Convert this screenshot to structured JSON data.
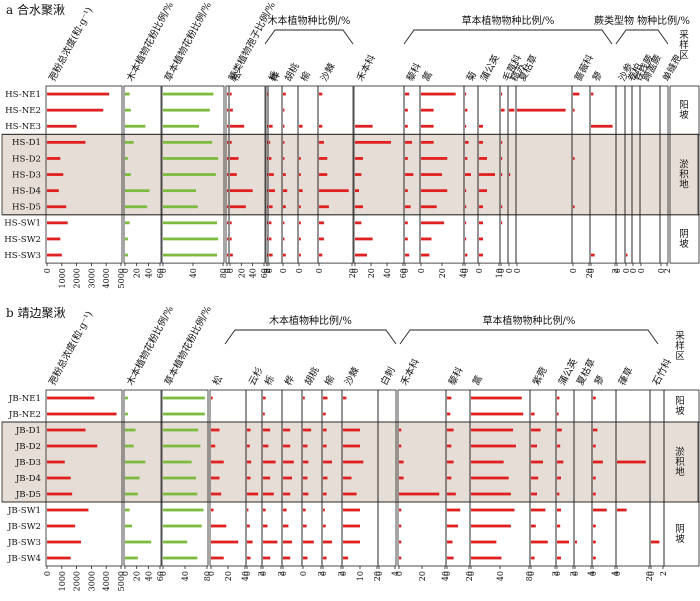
{
  "figure": {
    "colors": {
      "total": "#e02020",
      "tree_herb": "#7dbb3f",
      "species": "#e02020",
      "shade": "#e6ddd6",
      "frame": "#222222"
    }
  },
  "chart_data": [
    {
      "type": "bar",
      "panel_title": "a 合水聚湫",
      "samples": [
        "HS-NE1",
        "HS-NE2",
        "HS-NE3",
        "HS-D1",
        "HS-D2",
        "HS-D3",
        "HS-D4",
        "HS-D5",
        "HS-SW1",
        "HS-SW2",
        "HS-SW3"
      ],
      "group_labels": [
        {
          "label": "木本植物种比例/%"
        },
        {
          "label": "草本植物物种比例/%"
        },
        {
          "label": "蕨类型物 物种比例/%"
        }
      ],
      "zones": [
        {
          "label": "阳坡",
          "from": 0,
          "to": 2
        },
        {
          "label": "淤积地",
          "from": 3,
          "to": 7
        },
        {
          "label": "阴坡",
          "from": 8,
          "to": 10
        }
      ],
      "sample_area_label": "采样区",
      "columns": [
        {
          "label": "孢粉总浓度(粒·g⁻¹)",
          "kind": "total",
          "ticks": [
            "0",
            "1000",
            "2000",
            "3000",
            "4000",
            "5000"
          ],
          "max": 5000,
          "values": [
            4200,
            3800,
            2000,
            2600,
            900,
            1100,
            800,
            1300,
            1400,
            900,
            1000
          ]
        },
        {
          "label": "木本植物花粉比例/%",
          "kind": "woody",
          "ticks": [
            "0",
            "20",
            "40",
            "60"
          ],
          "max": 60,
          "values": [
            8,
            10,
            35,
            15,
            5,
            10,
            42,
            38,
            8,
            5,
            5
          ]
        },
        {
          "label": "草本植物花粉比例/%",
          "kind": "herb",
          "ticks": [
            "0",
            "40",
            "80"
          ],
          "max": 100,
          "values": [
            84,
            78,
            60,
            82,
            92,
            88,
            55,
            58,
            90,
            92,
            90
          ]
        },
        {
          "label": "蕨类植物孢子比例/%",
          "kind": "species",
          "ticks": [
            "0"
          ],
          "max": 10,
          "values": [
            2,
            0.5,
            1,
            4,
            1,
            5,
            1,
            1,
            2,
            1,
            1.5
          ]
        },
        {
          "label": "松",
          "kind": "species",
          "ticks": [
            "0",
            "20",
            "40",
            "60"
          ],
          "max": 60,
          "values": [
            3,
            5,
            25,
            3,
            15,
            12,
            40,
            28,
            3,
            3,
            5
          ]
        },
        {
          "label": "栎",
          "kind": "species",
          "ticks": [
            "0",
            "2"
          ],
          "max": 2,
          "values": [
            0.3,
            0,
            0.6,
            0.4,
            0.5,
            0.4,
            1.6,
            0.5,
            0.4,
            0.3,
            0.3
          ]
        },
        {
          "label": "桦",
          "kind": "species",
          "ticks": [
            "0"
          ],
          "max": 10,
          "values": [
            0,
            0,
            3,
            1,
            2,
            4,
            5,
            3,
            2,
            2,
            3
          ]
        },
        {
          "label": "胡桃",
          "kind": "species",
          "ticks": [
            "0"
          ],
          "max": 10,
          "values": [
            2,
            1,
            1,
            1,
            1,
            2,
            3,
            2,
            1,
            1,
            2
          ]
        },
        {
          "label": "榆",
          "kind": "species",
          "ticks": [
            "0"
          ],
          "max": 10,
          "values": [
            0,
            0,
            2,
            0,
            1,
            1,
            2,
            1,
            1,
            1,
            1
          ]
        },
        {
          "label": "沙棘",
          "kind": "species",
          "ticks": [
            "0",
            "20"
          ],
          "max": 20,
          "values": [
            2,
            0,
            2,
            3,
            5,
            5,
            18,
            6,
            3,
            3,
            2
          ]
        },
        {
          "label": "禾本科",
          "kind": "species",
          "ticks": [
            "0",
            "20",
            "40",
            "60"
          ],
          "max": 60,
          "values": [
            0,
            0,
            22,
            45,
            10,
            8,
            5,
            10,
            8,
            22,
            15
          ]
        },
        {
          "label": "藜科",
          "kind": "species",
          "ticks": [
            "0"
          ],
          "max": 10,
          "values": [
            3,
            2,
            2,
            5,
            2,
            6,
            2,
            4,
            2,
            2,
            3
          ]
        },
        {
          "label": "蒿",
          "kind": "species",
          "ticks": [
            "0",
            "20",
            "40"
          ],
          "max": 40,
          "values": [
            33,
            12,
            12,
            12,
            25,
            20,
            25,
            15,
            22,
            10,
            8
          ]
        },
        {
          "label": "菊",
          "kind": "species",
          "ticks": [
            "0"
          ],
          "max": 10,
          "values": [
            1,
            2,
            1,
            3,
            2,
            5,
            1,
            1,
            1,
            1,
            2
          ]
        },
        {
          "label": "蒲公英",
          "kind": "species",
          "ticks": [
            "0",
            "10"
          ],
          "max": 10,
          "values": [
            0,
            0,
            2,
            2,
            4,
            8,
            4,
            2,
            2,
            2,
            2
          ]
        },
        {
          "label": "毛茛科",
          "kind": "species",
          "ticks": [
            "0"
          ],
          "max": 10,
          "values": [
            1,
            6,
            0,
            1,
            1,
            1,
            0,
            1,
            1,
            0,
            0
          ]
        },
        {
          "label": "糙苏",
          "kind": "species",
          "ticks": [
            "0"
          ],
          "max": 10,
          "values": [
            0,
            9,
            0,
            0,
            0,
            1,
            0,
            0,
            0,
            0,
            0
          ]
        },
        {
          "label": "夏枯草",
          "kind": "species",
          "ticks": [
            "0"
          ],
          "max": 10,
          "values": [
            0,
            9,
            0,
            0,
            0,
            0,
            0,
            0,
            0,
            0,
            0
          ]
        },
        {
          "label": "蔷薇科",
          "kind": "species",
          "ticks": [
            "0",
            "20"
          ],
          "max": 20,
          "values": [
            8,
            2,
            0,
            0,
            2,
            0,
            0,
            2,
            0,
            0,
            0
          ]
        },
        {
          "label": "蓼",
          "kind": "species",
          "ticks": [
            "0",
            "2"
          ],
          "max": 2,
          "values": [
            0.2,
            0,
            1.8,
            0,
            0,
            0,
            0,
            0,
            0,
            0,
            0.3
          ]
        },
        {
          "label": "沙参",
          "kind": "species",
          "ticks": [
            "0"
          ],
          "max": 10,
          "values": [
            0,
            0,
            0,
            0,
            0,
            0,
            0,
            0,
            0,
            0,
            0
          ]
        },
        {
          "label": "卷柏",
          "kind": "species",
          "ticks": [
            "0"
          ],
          "max": 10,
          "values": [
            0,
            0,
            0,
            0,
            0,
            0,
            0,
            0,
            0,
            0,
            3
          ]
        },
        {
          "label": "铁线蕨",
          "kind": "species",
          "ticks": [
            "0"
          ],
          "max": 10,
          "values": [
            0,
            0,
            0,
            0,
            0,
            0,
            0,
            0,
            0,
            0,
            0
          ]
        },
        {
          "label": "蹄盖蕨",
          "kind": "species",
          "ticks": [
            "0"
          ],
          "max": 10,
          "values": [
            0,
            0,
            0,
            0,
            0,
            0,
            0,
            0,
            0,
            0,
            0
          ]
        },
        {
          "label": "单缝孢",
          "kind": "species",
          "ticks": [
            "0",
            "2"
          ],
          "max": 2,
          "values": [
            0,
            0,
            0,
            0,
            0,
            0,
            0,
            0,
            0,
            0,
            0
          ]
        }
      ]
    },
    {
      "type": "bar",
      "panel_title": "b 靖边聚湫",
      "samples": [
        "JB-NE1",
        "JB-NE2",
        "JB-D1",
        "JB-D2",
        "JB-D3",
        "JB-D4",
        "JB-D5",
        "JB-SW1",
        "JB-SW2",
        "JB-SW3",
        "JB-SW4"
      ],
      "group_labels": [
        {
          "label": "木本植物种比例/%"
        },
        {
          "label": "草本植物物种比例/%"
        }
      ],
      "zones": [
        {
          "label": "阳坡",
          "from": 0,
          "to": 1
        },
        {
          "label": "淤积地",
          "from": 2,
          "to": 6
        },
        {
          "label": "阴坡",
          "from": 7,
          "to": 10
        }
      ],
      "sample_area_label": "采样区",
      "columns": [
        {
          "label": "孢粉总浓度(粒·g⁻¹)",
          "kind": "total",
          "ticks": [
            "0",
            "1000",
            "2000",
            "3000",
            "4000",
            "5000"
          ],
          "max": 5000,
          "values": [
            3200,
            4700,
            2600,
            3400,
            1200,
            1600,
            1700,
            2800,
            1900,
            2300,
            1600
          ]
        },
        {
          "label": "木本植物花粉比例/%",
          "kind": "woody",
          "ticks": [
            "0",
            "20",
            "40",
            "60"
          ],
          "max": 60,
          "values": [
            5,
            5,
            18,
            15,
            35,
            25,
            22,
            8,
            12,
            45,
            22
          ]
        },
        {
          "label": "草本植物花粉比例/%",
          "kind": "herb",
          "ticks": [
            "0",
            "40",
            "80"
          ],
          "max": 100,
          "values": [
            95,
            95,
            80,
            85,
            65,
            75,
            78,
            92,
            88,
            55,
            78
          ]
        },
        {
          "label": "松",
          "kind": "species",
          "ticks": [
            "0",
            "20",
            "40"
          ],
          "max": 40,
          "values": [
            2,
            0,
            10,
            5,
            15,
            10,
            12,
            3,
            18,
            32,
            15
          ]
        },
        {
          "label": "云杉",
          "kind": "species",
          "ticks": [
            "0",
            "2"
          ],
          "max": 2,
          "values": [
            0,
            0,
            0.5,
            0.4,
            0.6,
            0.5,
            1.6,
            0.2,
            0.4,
            0.8,
            0.5
          ]
        },
        {
          "label": "栎",
          "kind": "species",
          "ticks": [
            "0",
            "2"
          ],
          "max": 2,
          "values": [
            0.3,
            0.2,
            0.8,
            0.6,
            1.4,
            0.8,
            1.2,
            0.3,
            0.5,
            1.6,
            0.8
          ]
        },
        {
          "label": "桦",
          "kind": "species",
          "ticks": [
            "0"
          ],
          "max": 10,
          "values": [
            0,
            0,
            4,
            4,
            6,
            5,
            4,
            2,
            3,
            5,
            4
          ]
        },
        {
          "label": "胡桃",
          "kind": "species",
          "ticks": [
            "0",
            "2"
          ],
          "max": 2,
          "values": [
            0.2,
            0,
            0.9,
            0.5,
            0.6,
            0.5,
            0.6,
            0.3,
            0.4,
            1.2,
            0.5
          ]
        },
        {
          "label": "榆",
          "kind": "species",
          "ticks": [
            "0",
            "2"
          ],
          "max": 2,
          "values": [
            0.5,
            0.3,
            0.4,
            0.4,
            1.0,
            0.5,
            0.4,
            0.2,
            0.3,
            1.0,
            0.4
          ]
        },
        {
          "label": "沙棘",
          "kind": "species",
          "ticks": [
            "0",
            "10",
            "20"
          ],
          "max": 20,
          "values": [
            2,
            0,
            10,
            10,
            12,
            5,
            8,
            10,
            10,
            10,
            3
          ]
        },
        {
          "label": "白刺",
          "kind": "species",
          "ticks": [
            "0",
            "4"
          ],
          "max": 4,
          "values": [
            0,
            0,
            0,
            0,
            0,
            0,
            0,
            0,
            0,
            0,
            0
          ]
        },
        {
          "label": "禾本科",
          "kind": "species",
          "ticks": [
            "0",
            "20",
            "40"
          ],
          "max": 40,
          "values": [
            0,
            0,
            2,
            2,
            4,
            4,
            35,
            2,
            2,
            2,
            2
          ]
        },
        {
          "label": "藜科",
          "kind": "species",
          "ticks": [
            "0",
            "20"
          ],
          "max": 20,
          "values": [
            4,
            3,
            6,
            4,
            6,
            4,
            8,
            12,
            10,
            5,
            6
          ]
        },
        {
          "label": "蒿",
          "kind": "species",
          "ticks": [
            "0",
            "40",
            "80"
          ],
          "max": 80,
          "values": [
            70,
            72,
            58,
            62,
            45,
            52,
            55,
            60,
            55,
            35,
            42
          ]
        },
        {
          "label": "紫菀",
          "kind": "species",
          "ticks": [
            "0",
            "2"
          ],
          "max": 2,
          "values": [
            0,
            0.3,
            0.8,
            0.5,
            1.0,
            0.6,
            0.5,
            1.2,
            0.4,
            1.4,
            0.3
          ]
        },
        {
          "label": "蒲公英",
          "kind": "species",
          "ticks": [
            "0",
            "2"
          ],
          "max": 2,
          "values": [
            0.3,
            0.2,
            0.6,
            0.4,
            0.8,
            0.5,
            0.3,
            0.5,
            0.4,
            1.5,
            0.5
          ]
        },
        {
          "label": "夏枯草",
          "kind": "species",
          "ticks": [
            "0",
            "4"
          ],
          "max": 4,
          "values": [
            0,
            0,
            0,
            0,
            0,
            0,
            0,
            0,
            0,
            0.5,
            0
          ]
        },
        {
          "label": "蓼",
          "kind": "species",
          "ticks": [
            "0",
            "4"
          ],
          "max": 4,
          "values": [
            0.5,
            0,
            0.8,
            0.5,
            1.8,
            0.5,
            0.5,
            2.5,
            0.5,
            0.5,
            0.5
          ]
        },
        {
          "label": "葎草",
          "kind": "species",
          "ticks": [
            "0",
            "20"
          ],
          "max": 20,
          "values": [
            0,
            0,
            0,
            0,
            18,
            0,
            0,
            6,
            0,
            0,
            0
          ]
        },
        {
          "label": "石竹科",
          "kind": "species",
          "ticks": [
            "0",
            "2"
          ],
          "max": 2,
          "values": [
            0,
            0,
            0,
            0,
            0,
            0,
            0,
            0,
            0,
            1.4,
            0
          ]
        }
      ]
    }
  ]
}
